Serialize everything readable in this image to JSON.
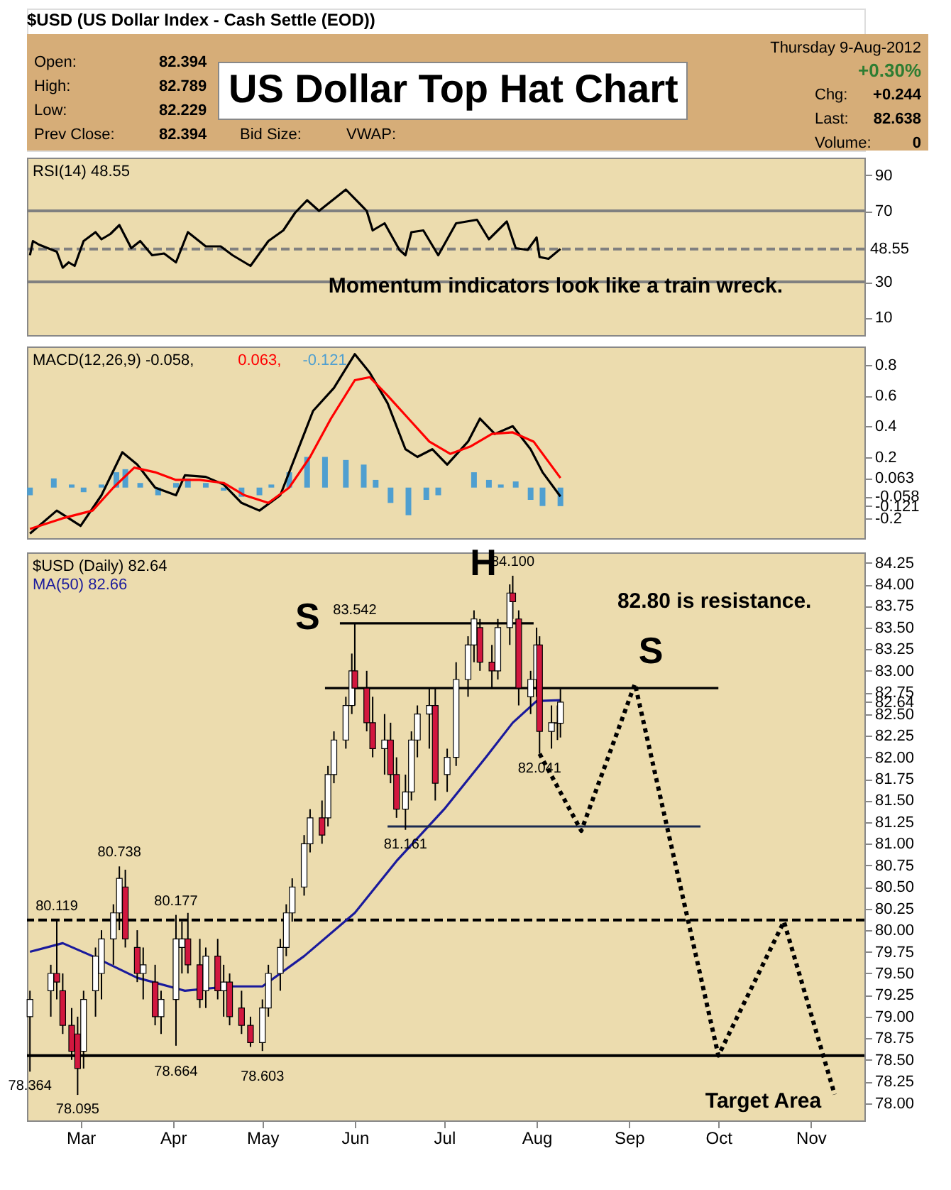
{
  "chart_data": [
    {
      "type": "other",
      "title": "US Dollar Top Hat Chart",
      "subtitle": "$USD (US Dollar Index - Cash Settle (EOD))",
      "annotations": [
        "Open:",
        "82.394",
        "High:",
        "82.789",
        "Low:",
        "82.229",
        "Prev Close:",
        "82.394",
        "Bid Size:",
        "VWAP:",
        "Thursday 9-Aug-2012",
        "+0.30%",
        "Chg:",
        "+0.244",
        "Last:",
        "82.638",
        "Volume:",
        "0"
      ]
    },
    {
      "type": "line",
      "title": "RSI(14) 48.55",
      "xlim": [
        "2012-02-12",
        "2012-11-19"
      ],
      "ylim": [
        0,
        100
      ],
      "yticks": [
        10,
        30,
        70,
        90
      ],
      "tick_labels": "y",
      "grid": false,
      "x": [
        "2012-02-13",
        "2012-02-14",
        "2012-02-16",
        "2012-02-19",
        "2012-02-22",
        "2012-02-24",
        "2012-02-26",
        "2012-02-28",
        "2012-03-02",
        "2012-03-06",
        "2012-03-08",
        "2012-03-11",
        "2012-03-14",
        "2012-03-18",
        "2012-03-21",
        "2012-03-25",
        "2012-03-29",
        "2012-04-02",
        "2012-04-06",
        "2012-04-12",
        "2012-04-17",
        "2012-04-21",
        "2012-04-27",
        "2012-05-03",
        "2012-05-08",
        "2012-05-12",
        "2012-05-16",
        "2012-05-20",
        "2012-05-29",
        "2012-06-05",
        "2012-06-07",
        "2012-06-11",
        "2012-06-16",
        "2012-06-18",
        "2012-06-20",
        "2012-06-24",
        "2012-06-29",
        "2012-07-05",
        "2012-07-12",
        "2012-07-16",
        "2012-07-22",
        "2012-07-25",
        "2012-07-29",
        "2012-08-01",
        "2012-08-02",
        "2012-08-05",
        "2012-08-09"
      ],
      "series": [
        {
          "color": "#000000",
          "line_style": "solid",
          "values": [
            45,
            53,
            51,
            49,
            47,
            38,
            41,
            39,
            53,
            58,
            54,
            57,
            62,
            49,
            53,
            45,
            46,
            41,
            58,
            50,
            50,
            45,
            39,
            53,
            59,
            69,
            76,
            70,
            82,
            70,
            59,
            63,
            48,
            45,
            58,
            59,
            45,
            63,
            65,
            54,
            64,
            49,
            48,
            55,
            44,
            43,
            48.55
          ]
        }
      ],
      "ref_lines": [
        {
          "axis": "y",
          "value": 70,
          "color": "#808080",
          "line_style": "solid"
        },
        {
          "axis": "y",
          "value": 30,
          "color": "#808080",
          "line_style": "solid"
        },
        {
          "axis": "y",
          "value": 48.55,
          "label": "48.55",
          "color": "#808080",
          "line_style": "dashed"
        }
      ],
      "annotations": [
        "Momentum indicators look like a train wreck."
      ]
    },
    {
      "type": "line",
      "xlim": [
        "2012-02-12",
        "2012-11-19"
      ],
      "ylim": [
        -0.33,
        0.92
      ],
      "yticks": [
        -0.2,
        {
          "value": -0.121,
          "label": "-0.121"
        },
        {
          "value": -0.058,
          "label": "-0.058"
        },
        {
          "value": 0.063,
          "label": "0.063"
        },
        0.2,
        0.4,
        0.6,
        0.8
      ],
      "tick_labels": "y",
      "grid": false,
      "legend": "top left",
      "series": [
        {
          "name": "MACD(12,26,9) -0.058,",
          "color": "#000000",
          "line_style": "solid",
          "x": [
            "2012-02-13",
            "2012-02-22",
            "2012-03-01",
            "2012-03-08",
            "2012-03-15",
            "2012-03-20",
            "2012-03-26",
            "2012-04-02",
            "2012-04-05",
            "2012-04-12",
            "2012-04-18",
            "2012-04-24",
            "2012-04-30",
            "2012-05-07",
            "2012-05-14",
            "2012-05-18",
            "2012-05-25",
            "2012-06-01",
            "2012-06-06",
            "2012-06-12",
            "2012-06-18",
            "2012-06-22",
            "2012-06-27",
            "2012-07-02",
            "2012-07-09",
            "2012-07-13",
            "2012-07-18",
            "2012-07-24",
            "2012-07-30",
            "2012-08-03",
            "2012-08-09"
          ],
          "values": [
            -0.3,
            -0.15,
            -0.25,
            -0.05,
            0.23,
            0.15,
            0.0,
            -0.05,
            0.08,
            0.07,
            0.02,
            -0.1,
            -0.15,
            -0.05,
            0.3,
            0.5,
            0.65,
            0.87,
            0.75,
            0.55,
            0.25,
            0.2,
            0.25,
            0.15,
            0.3,
            0.45,
            0.35,
            0.4,
            0.25,
            0.1,
            -0.058
          ]
        },
        {
          "name": "0.063,",
          "color": "#ff0000",
          "line_style": "solid",
          "x": [
            "2012-02-13",
            "2012-02-24",
            "2012-03-05",
            "2012-03-12",
            "2012-03-19",
            "2012-03-26",
            "2012-04-02",
            "2012-04-10",
            "2012-04-18",
            "2012-04-25",
            "2012-05-03",
            "2012-05-10",
            "2012-05-17",
            "2012-05-24",
            "2012-06-01",
            "2012-06-06",
            "2012-06-12",
            "2012-06-19",
            "2012-06-26",
            "2012-07-03",
            "2012-07-10",
            "2012-07-17",
            "2012-07-24",
            "2012-07-31",
            "2012-08-09"
          ],
          "values": [
            -0.27,
            -0.2,
            -0.15,
            0.0,
            0.13,
            0.1,
            0.05,
            0.05,
            0.03,
            -0.05,
            -0.1,
            0.0,
            0.2,
            0.45,
            0.7,
            0.72,
            0.6,
            0.45,
            0.3,
            0.22,
            0.27,
            0.35,
            0.36,
            0.3,
            0.063
          ]
        },
        {
          "name": "-0.121",
          "type": "bar",
          "color": "#4f9fd0",
          "x": [
            "2012-02-13",
            "2012-02-21",
            "2012-02-27",
            "2012-03-02",
            "2012-03-08",
            "2012-03-13",
            "2012-03-16",
            "2012-03-21",
            "2012-03-27",
            "2012-04-02",
            "2012-04-06",
            "2012-04-12",
            "2012-04-18",
            "2012-04-24",
            "2012-04-30",
            "2012-05-04",
            "2012-05-10",
            "2012-05-16",
            "2012-05-22",
            "2012-05-29",
            "2012-06-04",
            "2012-06-08",
            "2012-06-13",
            "2012-06-19",
            "2012-06-25",
            "2012-06-29",
            "2012-07-05",
            "2012-07-11",
            "2012-07-16",
            "2012-07-20",
            "2012-07-25",
            "2012-07-30",
            "2012-08-03",
            "2012-08-09"
          ],
          "values": [
            -0.05,
            0.06,
            0.02,
            -0.03,
            0.02,
            0.1,
            0.12,
            0.03,
            -0.05,
            0.03,
            0.06,
            0.03,
            -0.02,
            -0.06,
            -0.05,
            0.02,
            0.1,
            0.2,
            0.2,
            0.18,
            0.15,
            0.05,
            -0.1,
            -0.18,
            -0.08,
            -0.05,
            0.0,
            0.1,
            0.05,
            0.02,
            0.04,
            -0.08,
            -0.12,
            -0.121
          ]
        }
      ]
    },
    {
      "type": "candlestick",
      "title": "$USD (Daily) 82.64",
      "xlim": [
        "2012-02-12",
        "2012-11-19"
      ],
      "ylim": [
        77.8,
        84.37
      ],
      "legend": "top left",
      "grid": false,
      "xticks": [
        {
          "value": "2012-03-01",
          "label": "Mar"
        },
        {
          "value": "2012-04-01",
          "label": "Apr"
        },
        {
          "value": "2012-05-01",
          "label": "May"
        },
        {
          "value": "2012-06-01",
          "label": "Jun"
        },
        {
          "value": "2012-07-01",
          "label": "Jul"
        },
        {
          "value": "2012-08-01",
          "label": "Aug"
        },
        {
          "value": "2012-09-01",
          "label": "Sep"
        },
        {
          "value": "2012-10-01",
          "label": "Oct"
        },
        {
          "value": "2012-11-01",
          "label": "Nov"
        }
      ],
      "yticks": [
        {
          "value": 78,
          "label": "78.00"
        },
        {
          "value": 78.25,
          "label": "78.25"
        },
        {
          "value": 78.5,
          "label": "78.50"
        },
        {
          "value": 78.75,
          "label": "78.75"
        },
        {
          "value": 79,
          "label": "79.00"
        },
        {
          "value": 79.25,
          "label": "79.25"
        },
        {
          "value": 79.5,
          "label": "79.50"
        },
        {
          "value": 79.75,
          "label": "79.75"
        },
        {
          "value": 80,
          "label": "80.00"
        },
        {
          "value": 80.25,
          "label": "80.25"
        },
        {
          "value": 80.5,
          "label": "80.50"
        },
        {
          "value": 80.75,
          "label": "80.75"
        },
        {
          "value": 81,
          "label": "81.00"
        },
        {
          "value": 81.25,
          "label": "81.25"
        },
        {
          "value": 81.5,
          "label": "81.50"
        },
        {
          "value": 81.75,
          "label": "81.75"
        },
        {
          "value": 82,
          "label": "82.00"
        },
        {
          "value": 82.25,
          "label": "82.25"
        },
        {
          "value": 82.5,
          "label": "82.50"
        },
        {
          "value": 82.64,
          "label": "82.64"
        },
        {
          "value": 82.75,
          "label": "82.75"
        },
        {
          "value": 83,
          "label": "83.00"
        },
        {
          "value": 83.25,
          "label": "83.25"
        },
        {
          "value": 83.5,
          "label": "83.50"
        },
        {
          "value": 83.75,
          "label": "83.75"
        },
        {
          "value": 84,
          "label": "84.00"
        },
        {
          "value": 84.25,
          "label": "84.25"
        }
      ],
      "x": [
        "2012-02-13",
        "2012-02-20",
        "2012-02-22",
        "2012-02-24",
        "2012-02-27",
        "2012-02-29",
        "2012-03-02",
        "2012-03-06",
        "2012-03-08",
        "2012-03-12",
        "2012-03-14",
        "2012-03-16",
        "2012-03-20",
        "2012-03-22",
        "2012-03-26",
        "2012-03-28",
        "2012-04-02",
        "2012-04-04",
        "2012-04-06",
        "2012-04-10",
        "2012-04-12",
        "2012-04-16",
        "2012-04-18",
        "2012-04-20",
        "2012-04-24",
        "2012-04-27",
        "2012-05-01",
        "2012-05-03",
        "2012-05-07",
        "2012-05-09",
        "2012-05-11",
        "2012-05-15",
        "2012-05-17",
        "2012-05-21",
        "2012-05-23",
        "2012-05-25",
        "2012-05-29",
        "2012-05-31",
        "2012-06-01",
        "2012-06-05",
        "2012-06-07",
        "2012-06-11",
        "2012-06-13",
        "2012-06-15",
        "2012-06-18",
        "2012-06-20",
        "2012-06-22",
        "2012-06-26",
        "2012-06-28",
        "2012-07-02",
        "2012-07-05",
        "2012-07-09",
        "2012-07-11",
        "2012-07-13",
        "2012-07-17",
        "2012-07-19",
        "2012-07-23",
        "2012-07-24",
        "2012-07-26",
        "2012-07-30",
        "2012-08-01",
        "2012-08-02",
        "2012-08-06",
        "2012-08-08",
        "2012-08-09"
      ],
      "ohlc": [
        [
          79.0,
          79.3,
          78.364,
          79.2
        ],
        [
          79.3,
          79.6,
          79.0,
          79.5
        ],
        [
          79.5,
          80.119,
          79.2,
          79.4
        ],
        [
          79.3,
          79.5,
          78.8,
          78.9
        ],
        [
          78.9,
          79.1,
          78.5,
          78.6
        ],
        [
          78.8,
          79.0,
          78.095,
          78.4
        ],
        [
          78.6,
          79.3,
          78.4,
          79.2
        ],
        [
          79.3,
          79.8,
          79.0,
          79.7
        ],
        [
          79.5,
          80.0,
          79.2,
          79.9
        ],
        [
          79.9,
          80.3,
          79.6,
          80.2
        ],
        [
          80.2,
          80.738,
          80.0,
          80.6
        ],
        [
          80.5,
          80.7,
          79.8,
          79.9
        ],
        [
          79.8,
          80.0,
          79.4,
          79.5
        ],
        [
          79.5,
          79.8,
          79.2,
          79.6
        ],
        [
          79.4,
          79.6,
          78.9,
          79.0
        ],
        [
          79.0,
          79.3,
          78.8,
          79.2
        ],
        [
          79.2,
          80.177,
          78.664,
          79.9
        ],
        [
          79.8,
          80.1,
          79.5,
          79.9
        ],
        [
          79.9,
          80.2,
          79.5,
          79.6
        ],
        [
          79.6,
          79.9,
          79.1,
          79.2
        ],
        [
          79.3,
          79.8,
          79.1,
          79.7
        ],
        [
          79.7,
          79.9,
          79.2,
          79.3
        ],
        [
          79.3,
          79.6,
          79.0,
          79.4
        ],
        [
          79.4,
          79.5,
          78.9,
          79.0
        ],
        [
          79.1,
          79.3,
          78.8,
          78.9
        ],
        [
          78.9,
          79.0,
          78.65,
          78.7
        ],
        [
          78.7,
          79.2,
          78.603,
          79.1
        ],
        [
          79.1,
          79.6,
          79.0,
          79.5
        ],
        [
          79.5,
          79.9,
          79.3,
          79.8
        ],
        [
          79.8,
          80.3,
          79.7,
          80.2
        ],
        [
          80.2,
          80.6,
          80.1,
          80.5
        ],
        [
          80.5,
          81.1,
          80.4,
          81.0
        ],
        [
          81.0,
          81.4,
          80.9,
          81.3
        ],
        [
          81.3,
          81.5,
          81.0,
          81.1
        ],
        [
          81.3,
          81.9,
          81.2,
          81.8
        ],
        [
          81.8,
          82.3,
          81.7,
          82.2
        ],
        [
          82.2,
          82.7,
          82.1,
          82.6
        ],
        [
          82.6,
          83.2,
          82.5,
          83.0
        ],
        [
          83.0,
          83.542,
          82.6,
          82.8
        ],
        [
          82.8,
          83.0,
          82.3,
          82.4
        ],
        [
          82.4,
          82.7,
          82.0,
          82.1
        ],
        [
          82.1,
          82.5,
          81.8,
          82.2
        ],
        [
          82.2,
          82.4,
          81.7,
          81.8
        ],
        [
          81.8,
          82.0,
          81.3,
          81.4
        ],
        [
          81.4,
          81.8,
          81.161,
          81.6
        ],
        [
          81.6,
          82.3,
          81.5,
          82.2
        ],
        [
          82.2,
          82.6,
          82.0,
          82.5
        ],
        [
          82.5,
          82.8,
          82.1,
          82.6
        ],
        [
          82.6,
          82.8,
          81.5,
          81.7
        ],
        [
          81.8,
          82.1,
          81.6,
          82.0
        ],
        [
          82.0,
          83.1,
          81.9,
          82.9
        ],
        [
          82.9,
          83.4,
          82.7,
          83.3
        ],
        [
          83.3,
          83.7,
          83.1,
          83.6
        ],
        [
          83.5,
          83.6,
          83.0,
          83.1
        ],
        [
          83.1,
          83.3,
          82.8,
          83.0
        ],
        [
          83.0,
          83.6,
          82.9,
          83.5
        ],
        [
          83.5,
          84.0,
          83.3,
          83.9
        ],
        [
          83.9,
          84.1,
          83.6,
          83.8
        ],
        [
          83.6,
          83.7,
          82.6,
          82.8
        ],
        [
          82.7,
          83.0,
          82.5,
          82.9
        ],
        [
          82.9,
          83.5,
          82.7,
          83.3
        ],
        [
          83.3,
          83.4,
          82.041,
          82.3
        ],
        [
          82.3,
          82.6,
          82.1,
          82.4
        ],
        [
          82.4,
          82.6,
          82.2,
          82.394
        ],
        [
          82.394,
          82.789,
          82.229,
          82.638
        ]
      ],
      "colors": [
        "#ffffff",
        "#ffffff",
        "#d2173f",
        "#d2173f",
        "#d2173f",
        "#d2173f",
        "#ffffff",
        "#ffffff",
        "#ffffff",
        "#ffffff",
        "#ffffff",
        "#d2173f",
        "#d2173f",
        "#ffffff",
        "#d2173f",
        "#ffffff",
        "#ffffff",
        "#ffffff",
        "#d2173f",
        "#d2173f",
        "#ffffff",
        "#d2173f",
        "#ffffff",
        "#d2173f",
        "#d2173f",
        "#d2173f",
        "#ffffff",
        "#ffffff",
        "#ffffff",
        "#ffffff",
        "#ffffff",
        "#ffffff",
        "#ffffff",
        "#d2173f",
        "#ffffff",
        "#ffffff",
        "#ffffff",
        "#ffffff",
        "#d2173f",
        "#d2173f",
        "#d2173f",
        "#ffffff",
        "#d2173f",
        "#d2173f",
        "#ffffff",
        "#ffffff",
        "#ffffff",
        "#ffffff",
        "#d2173f",
        "#ffffff",
        "#ffffff",
        "#ffffff",
        "#ffffff",
        "#d2173f",
        "#d2173f",
        "#ffffff",
        "#ffffff",
        "#d2173f",
        "#d2173f",
        "#ffffff",
        "#ffffff",
        "#d2173f",
        "#ffffff",
        "#d2173f",
        "#ffffff"
      ],
      "series": [
        {
          "name": "MA(50) 82.66",
          "type": "line",
          "color": "#1a1a9c",
          "line_style": "solid",
          "x": [
            "2012-02-13",
            "2012-02-24",
            "2012-03-05",
            "2012-03-20",
            "2012-04-05",
            "2012-04-20",
            "2012-05-01",
            "2012-05-15",
            "2012-06-01",
            "2012-06-15",
            "2012-07-01",
            "2012-07-15",
            "2012-07-24",
            "2012-08-01",
            "2012-08-09"
          ],
          "values": [
            79.75,
            79.85,
            79.7,
            79.45,
            79.3,
            79.35,
            79.35,
            79.7,
            80.2,
            80.8,
            81.4,
            82.0,
            82.4,
            82.65,
            82.66
          ]
        },
        {
          "type": "line",
          "color": "#000000",
          "line_style": "solid",
          "x": [
            "2012-05-27",
            "2012-07-31"
          ],
          "values": [
            83.55,
            83.55
          ]
        },
        {
          "type": "line",
          "color": "#000000",
          "line_style": "solid",
          "x": [
            "2012-05-22",
            "2012-10-01"
          ],
          "values": [
            82.8,
            82.8
          ]
        },
        {
          "type": "line",
          "color": "#1b2a50",
          "line_style": "solid",
          "x": [
            "2012-06-12",
            "2012-09-25"
          ],
          "values": [
            81.2,
            81.2
          ]
        },
        {
          "type": "line",
          "color": "#000000",
          "line_style": "dotted",
          "x": [
            "2012-08-02",
            "2012-08-16",
            "2012-09-03",
            "2012-10-01",
            "2012-10-23",
            "2012-11-09"
          ],
          "values": [
            82.041,
            81.15,
            82.85,
            78.55,
            80.1,
            78.1
          ]
        }
      ],
      "ref_lines": [
        {
          "axis": "y",
          "value": 80.119,
          "color": "#000000",
          "line_style": "dashed"
        },
        {
          "axis": "y",
          "value": 78.55,
          "color": "#000000",
          "line_style": "solid"
        }
      ],
      "annotations": [
        {
          "text": "78.364",
          "x": "2012-02-13",
          "y": 78.364
        },
        {
          "text": "80.119",
          "x": "2012-02-22",
          "y": 80.119
        },
        {
          "text": "78.095",
          "x": "2012-02-29",
          "y": 78.095
        },
        {
          "text": "80.738",
          "x": "2012-03-14",
          "y": 80.738
        },
        {
          "text": "80.177",
          "x": "2012-04-02",
          "y": 80.177
        },
        {
          "text": "78.664",
          "x": "2012-04-02",
          "y": 78.664
        },
        {
          "text": "78.603",
          "x": "2012-05-01",
          "y": 78.603
        },
        {
          "text": "83.542",
          "x": "2012-06-01",
          "y": 83.542
        },
        {
          "text": "81.161",
          "x": "2012-06-18",
          "y": 81.161
        },
        {
          "text": "84.100",
          "x": "2012-07-24",
          "y": 84.1
        },
        {
          "text": "82.041",
          "x": "2012-08-02",
          "y": 82.041
        },
        "S",
        "H",
        "S",
        "82.80 is resistance.",
        "Target Area"
      ]
    }
  ]
}
